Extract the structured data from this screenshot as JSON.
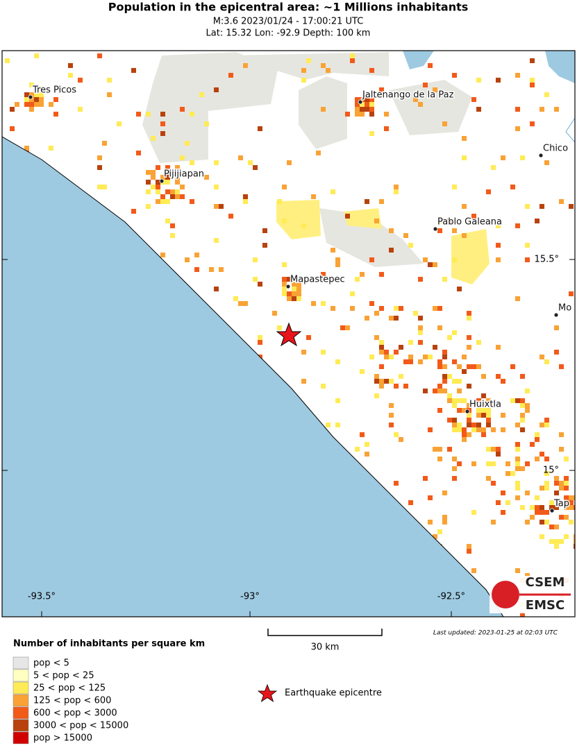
{
  "header": {
    "title": "Population in the epicentral area: ~1 Millions inhabitants",
    "event_line": "M:3.6 2023/01/24 - 17:00:21 UTC",
    "location_line": "Lat: 15.32 Lon: -92.9 Depth: 100 km"
  },
  "map": {
    "places": [
      "Tres Picos",
      "Jaltenango de la Paz",
      "Chico",
      "Pijijiapan",
      "Pablo Galeana",
      "Mapastepec",
      "Mo",
      "Huixtla",
      "Tap"
    ],
    "x_labels": [
      "-93.5°",
      "-93°",
      "-92.5°"
    ],
    "y_labels": [
      "15.5°",
      "15°"
    ],
    "scale_label": "30 km",
    "last_updated": "Last updated: 2023-01-25 at 02:03 UTC",
    "logo": [
      "CSEM",
      "EMSC"
    ]
  },
  "legend": {
    "title": "Number of inhabitants per square km",
    "items": [
      {
        "label": "pop < 5",
        "color": "#e6e6e6"
      },
      {
        "label": "5 < pop < 25",
        "color": "#ffffc2"
      },
      {
        "label": "25 < pop < 125",
        "color": "#ffeb55"
      },
      {
        "label": "125 < pop < 600",
        "color": "#f9a235"
      },
      {
        "label": "600 < pop < 3000",
        "color": "#f25a1a"
      },
      {
        "label": "3000 < pop < 15000",
        "color": "#b8420d"
      },
      {
        "label": "pop > 15000",
        "color": "#d10000"
      }
    ],
    "epicentre": "Earthquake epicentre"
  }
}
